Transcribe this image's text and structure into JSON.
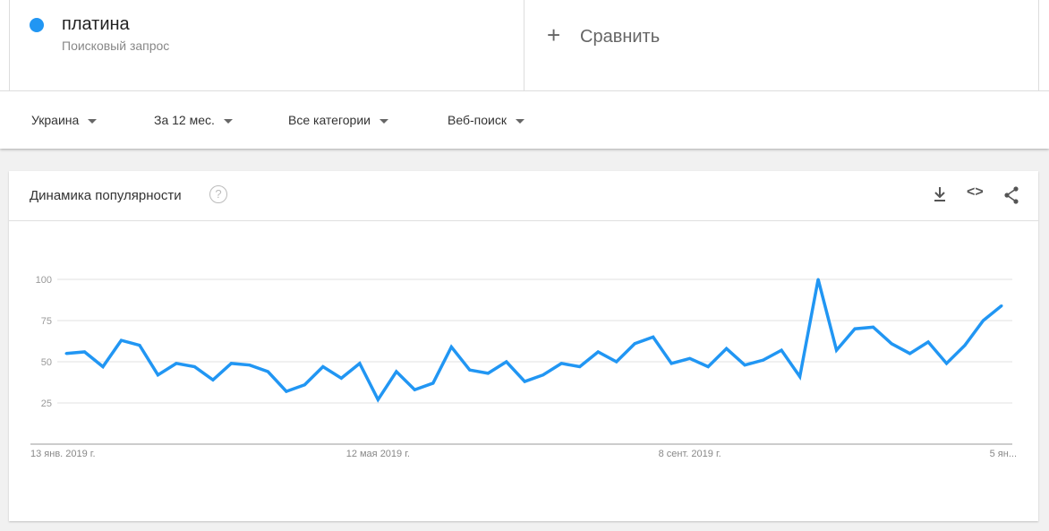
{
  "term": {
    "name": "платина",
    "subtitle": "Поисковый запрос",
    "color": "#2196f3"
  },
  "compare": {
    "label": "Сравнить"
  },
  "filters": {
    "region": "Украина",
    "period": "За 12 мес.",
    "category": "Все категории",
    "search_type": "Веб-поиск"
  },
  "card": {
    "title": "Динамика популярности",
    "help": "?"
  },
  "chart_data": {
    "type": "line",
    "title": "Динамика популярности",
    "ylim": [
      0,
      100
    ],
    "yticks": [
      25,
      50,
      75,
      100
    ],
    "grid": true,
    "xtick_labels": [
      "13 янв. 2019 г.",
      "12 мая 2019 г.",
      "8 сент. 2019 г.",
      "5 ян..."
    ],
    "xtick_index": [
      0,
      17,
      34,
      51
    ],
    "color": "#2196f3",
    "values": [
      55,
      56,
      47,
      63,
      60,
      42,
      49,
      47,
      39,
      49,
      48,
      44,
      32,
      36,
      47,
      40,
      49,
      27,
      44,
      33,
      37,
      59,
      45,
      43,
      50,
      38,
      42,
      49,
      47,
      56,
      50,
      61,
      65,
      49,
      52,
      47,
      58,
      48,
      51,
      57,
      41,
      100,
      57,
      70,
      71,
      61,
      55,
      62,
      49,
      60,
      75,
      84
    ]
  }
}
